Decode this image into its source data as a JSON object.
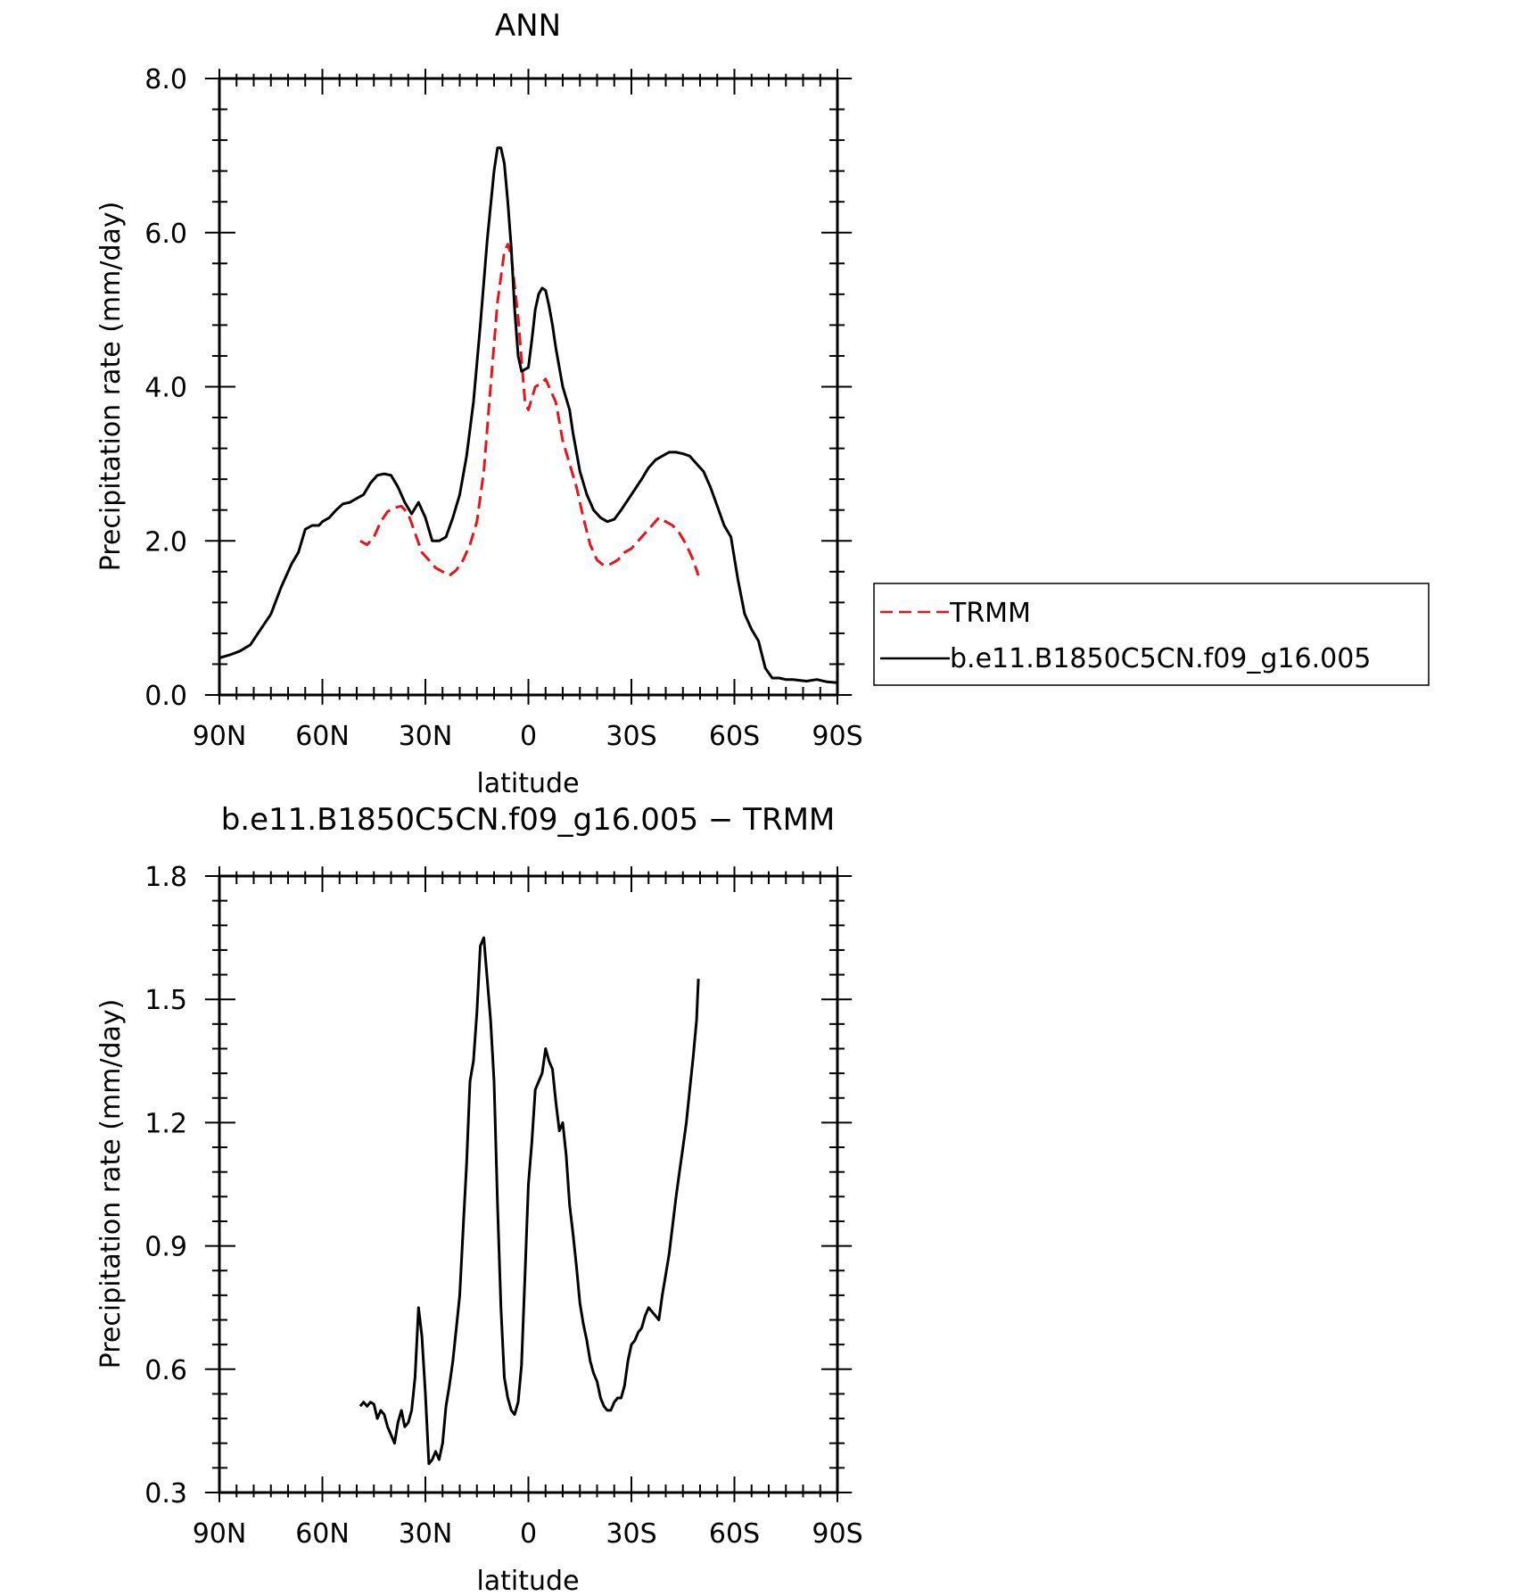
{
  "chart_data": [
    {
      "type": "line",
      "title": "ANN",
      "xlabel": "latitude",
      "ylabel": "Precipitation rate (mm/day)",
      "xlim": [
        90,
        -90
      ],
      "ylim": [
        0,
        8
      ],
      "x_ticks": [
        90,
        60,
        30,
        0,
        -30,
        -60,
        -90
      ],
      "x_tick_labels": [
        "90N",
        "60N",
        "30N",
        "0",
        "30S",
        "60S",
        "90S"
      ],
      "y_ticks": [
        0,
        2,
        4,
        6,
        8
      ],
      "y_tick_labels": [
        "0.0",
        "2.0",
        "4.0",
        "6.0",
        "8.0"
      ],
      "legend_position": "outside-right",
      "series": [
        {
          "name": "TRMM",
          "color": "#e8141c",
          "dash": "dashed",
          "x": [
            49,
            47,
            45,
            43,
            41,
            39,
            37,
            35,
            33,
            31,
            29,
            27,
            25,
            23,
            21,
            19,
            17,
            15,
            13,
            11,
            9,
            7,
            6,
            5,
            3,
            1,
            0,
            -2,
            -4,
            -5,
            -6,
            -8,
            -10,
            -12,
            -14,
            -16,
            -18,
            -20,
            -22,
            -24,
            -26,
            -28,
            -30,
            -32,
            -34,
            -36,
            -38,
            -40,
            -42,
            -44,
            -46,
            -48,
            -49.5
          ],
          "y": [
            2.0,
            1.95,
            2.05,
            2.25,
            2.38,
            2.43,
            2.45,
            2.35,
            2.1,
            1.85,
            1.75,
            1.65,
            1.6,
            1.55,
            1.62,
            1.75,
            1.95,
            2.25,
            2.9,
            4.0,
            5.1,
            5.75,
            5.85,
            5.7,
            4.9,
            3.8,
            3.7,
            4.0,
            4.05,
            4.1,
            4.0,
            3.8,
            3.3,
            3.0,
            2.7,
            2.3,
            1.95,
            1.75,
            1.68,
            1.7,
            1.75,
            1.85,
            1.9,
            2.0,
            2.1,
            2.2,
            2.3,
            2.25,
            2.2,
            2.1,
            1.95,
            1.75,
            1.55
          ]
        },
        {
          "name": "b.e11.B1850C5CN.f09_g16.005",
          "color": "#000000",
          "dash": "solid",
          "x": [
            90,
            87,
            84,
            81,
            78,
            75,
            72,
            69,
            67,
            65,
            63,
            61,
            60,
            58,
            56,
            54,
            52,
            50,
            48,
            46,
            44,
            42,
            40,
            38,
            36,
            34,
            32,
            30,
            28,
            26,
            24,
            22,
            20,
            18,
            16,
            14,
            12,
            10,
            9,
            8,
            7,
            6,
            5,
            4,
            3,
            2,
            0,
            -1,
            -2,
            -3,
            -4,
            -5,
            -6,
            -7,
            -8,
            -10,
            -12,
            -13,
            -15,
            -17,
            -19,
            -21,
            -23,
            -25,
            -27,
            -30,
            -33,
            -35,
            -37,
            -39,
            -41,
            -43,
            -45,
            -47,
            -49,
            -51,
            -53,
            -55,
            -57,
            -59,
            -61,
            -63,
            -65,
            -67,
            -69,
            -71,
            -73,
            -75,
            -77,
            -79,
            -81,
            -84,
            -87,
            -90
          ],
          "y": [
            0.48,
            0.52,
            0.57,
            0.65,
            0.85,
            1.05,
            1.4,
            1.7,
            1.85,
            2.15,
            2.2,
            2.2,
            2.25,
            2.3,
            2.4,
            2.48,
            2.5,
            2.55,
            2.6,
            2.75,
            2.85,
            2.87,
            2.85,
            2.7,
            2.5,
            2.35,
            2.5,
            2.3,
            2.0,
            2.0,
            2.05,
            2.3,
            2.6,
            3.1,
            3.8,
            4.8,
            5.9,
            6.8,
            7.1,
            7.1,
            6.9,
            6.4,
            5.8,
            5.0,
            4.4,
            4.2,
            4.25,
            4.6,
            5.0,
            5.2,
            5.28,
            5.25,
            5.05,
            4.8,
            4.5,
            4.0,
            3.7,
            3.4,
            2.9,
            2.6,
            2.4,
            2.3,
            2.25,
            2.28,
            2.4,
            2.6,
            2.8,
            2.95,
            3.05,
            3.1,
            3.15,
            3.15,
            3.13,
            3.1,
            3.0,
            2.9,
            2.7,
            2.45,
            2.2,
            2.05,
            1.5,
            1.05,
            0.85,
            0.7,
            0.35,
            0.22,
            0.22,
            0.2,
            0.2,
            0.19,
            0.18,
            0.2,
            0.17,
            0.16
          ]
        }
      ]
    },
    {
      "type": "line",
      "title": "b.e11.B1850C5CN.f09_g16.005 − TRMM",
      "xlabel": "latitude",
      "ylabel": "Precipitation rate (mm/day)",
      "xlim": [
        90,
        -90
      ],
      "ylim": [
        0.3,
        1.8
      ],
      "x_ticks": [
        90,
        60,
        30,
        0,
        -30,
        -60,
        -90
      ],
      "x_tick_labels": [
        "90N",
        "60N",
        "30N",
        "0",
        "30S",
        "60S",
        "90S"
      ],
      "y_ticks": [
        0.3,
        0.6,
        0.9,
        1.2,
        1.5,
        1.8
      ],
      "y_tick_labels": [
        "0.3",
        "0.6",
        "0.9",
        "1.2",
        "1.5",
        "1.8"
      ],
      "series": [
        {
          "color": "#000000",
          "dash": "solid",
          "x": [
            49,
            48,
            47,
            46,
            45,
            44,
            43,
            42,
            41,
            40,
            39,
            38,
            37,
            36,
            35,
            34,
            33,
            32,
            31,
            30,
            29,
            28,
            27,
            26,
            25,
            24,
            23,
            22,
            21,
            20,
            19,
            18,
            17,
            16,
            15,
            14,
            13,
            12,
            11,
            10,
            9,
            8,
            7,
            6,
            5,
            4,
            3,
            2,
            1,
            0,
            -1,
            -2,
            -3,
            -4,
            -5,
            -6,
            -7,
            -8,
            -9,
            -10,
            -11,
            -12,
            -13,
            -14,
            -15,
            -16,
            -17,
            -18,
            -19,
            -20,
            -21,
            -22,
            -23,
            -24,
            -25,
            -26,
            -27,
            -28,
            -29,
            -30,
            -31,
            -32,
            -33,
            -34,
            -35,
            -36,
            -37,
            -38,
            -39,
            -40,
            -41,
            -42,
            -43,
            -44,
            -45,
            -46,
            -47,
            -48,
            -49,
            -49.5
          ],
          "y": [
            0.51,
            0.52,
            0.51,
            0.52,
            0.515,
            0.48,
            0.5,
            0.49,
            0.46,
            0.44,
            0.42,
            0.47,
            0.5,
            0.46,
            0.47,
            0.5,
            0.58,
            0.75,
            0.68,
            0.54,
            0.37,
            0.38,
            0.4,
            0.38,
            0.42,
            0.51,
            0.56,
            0.62,
            0.7,
            0.78,
            0.94,
            1.1,
            1.3,
            1.35,
            1.47,
            1.63,
            1.65,
            1.55,
            1.45,
            1.3,
            1.0,
            0.75,
            0.58,
            0.53,
            0.5,
            0.49,
            0.52,
            0.61,
            0.83,
            1.05,
            1.15,
            1.28,
            1.3,
            1.32,
            1.38,
            1.35,
            1.33,
            1.25,
            1.18,
            1.2,
            1.12,
            1.0,
            0.93,
            0.85,
            0.76,
            0.71,
            0.67,
            0.62,
            0.59,
            0.57,
            0.53,
            0.51,
            0.5,
            0.5,
            0.52,
            0.53,
            0.53,
            0.56,
            0.62,
            0.66,
            0.67,
            0.69,
            0.7,
            0.73,
            0.75,
            0.74,
            0.73,
            0.72,
            0.78,
            0.83,
            0.88,
            0.95,
            1.02,
            1.08,
            1.14,
            1.2,
            1.28,
            1.36,
            1.45,
            1.55
          ]
        }
      ]
    }
  ]
}
